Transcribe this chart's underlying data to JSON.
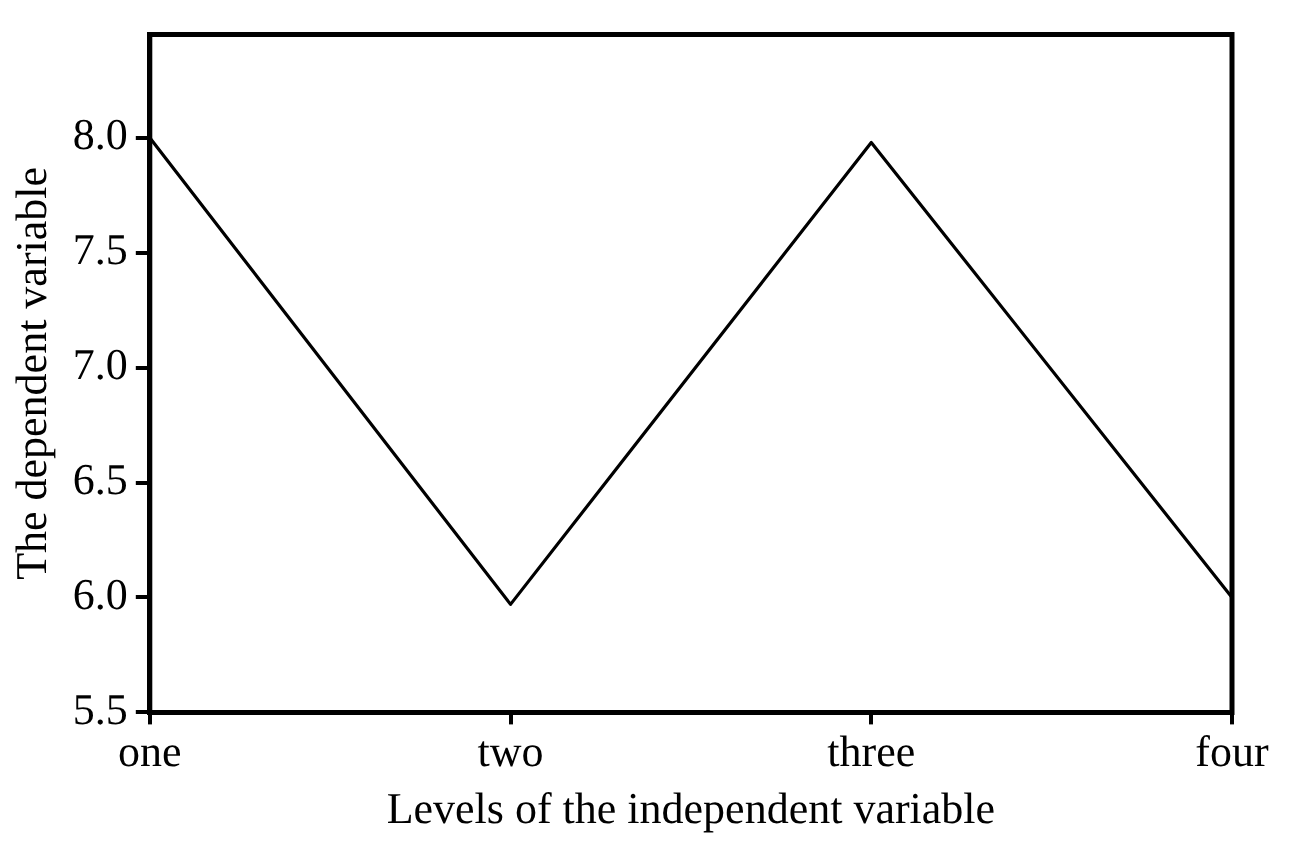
{
  "chart_data": {
    "type": "line",
    "xlabel": "Levels of the independent variable",
    "ylabel": "The dependent variable",
    "categories": [
      "one",
      "two",
      "three",
      "four"
    ],
    "series": [
      {
        "color": "#000000",
        "values": [
          8.0,
          5.97,
          7.98,
          6.0
        ]
      }
    ],
    "ylim": [
      5.5,
      8.45
    ],
    "yticks": [
      5.5,
      {
        "value": 6,
        "label": "6.0"
      },
      6.5,
      {
        "value": 7,
        "label": "7.0"
      },
      7.5,
      {
        "value": 8,
        "label": "8.0"
      }
    ]
  }
}
